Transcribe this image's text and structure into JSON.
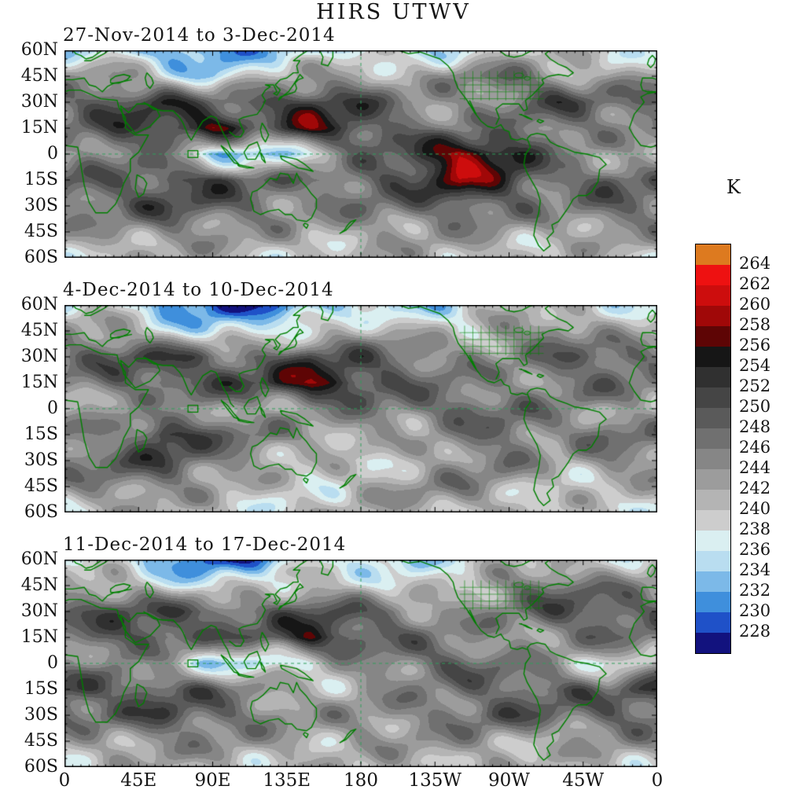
{
  "title": "HIRS UTWV",
  "panels": [
    {
      "title": "27-Nov-2014 to 3-Dec-2014"
    },
    {
      "title": "4-Dec-2014 to 10-Dec-2014"
    },
    {
      "title": "11-Dec-2014 to 17-Dec-2014"
    }
  ],
  "axes": {
    "lat_ticks": [
      "60N",
      "45N",
      "30N",
      "15N",
      "0",
      "15S",
      "30S",
      "45S",
      "60S"
    ],
    "lon_ticks": [
      "0",
      "45E",
      "90E",
      "135E",
      "180",
      "135W",
      "90W",
      "45W",
      "0"
    ]
  },
  "colorbar": {
    "label": "K",
    "ticks": [
      "264",
      "262",
      "260",
      "258",
      "256",
      "254",
      "252",
      "250",
      "248",
      "246",
      "244",
      "242",
      "240",
      "238",
      "236",
      "234",
      "232",
      "230",
      "228"
    ],
    "colors": [
      "#dd7a1f",
      "#ee1111",
      "#cd0d0d",
      "#a00808",
      "#5e0505",
      "#161616",
      "#303030",
      "#454545",
      "#5a5a5a",
      "#707070",
      "#868686",
      "#9c9c9c",
      "#b4b4b4",
      "#cdcdcd",
      "#daeff1",
      "#b9ddf0",
      "#7cb9e8",
      "#3f8fdc",
      "#1f51c8",
      "#12127e"
    ],
    "coast_color": "#008000"
  },
  "chart_data": {
    "type": "heatmap",
    "title": "HIRS UTWV",
    "units": "K",
    "lat_range": [
      -60,
      60
    ],
    "lon_range": [
      0,
      360
    ],
    "grid_lat_step": 15,
    "grid_lon_step": 30,
    "levels": [
      228,
      230,
      232,
      234,
      236,
      238,
      240,
      242,
      244,
      246,
      248,
      250,
      252,
      254,
      256,
      258,
      260,
      262,
      264
    ],
    "panels": [
      {
        "title": "27-Nov-2014 to 3-Dec-2014",
        "values": [
          [
            237,
            236,
            232,
            230,
            233,
            234,
            236,
            237,
            238,
            239,
            239,
            238,
            237
          ],
          [
            243,
            246,
            240,
            234,
            238,
            242,
            244,
            241,
            246,
            248,
            244,
            240,
            243
          ],
          [
            248,
            250,
            252,
            248,
            250,
            253,
            250,
            246,
            244,
            246,
            250,
            248,
            248
          ],
          [
            246,
            250,
            252,
            257,
            248,
            257,
            252,
            246,
            244,
            246,
            248,
            246,
            246
          ],
          [
            242,
            246,
            244,
            234,
            234,
            240,
            246,
            250,
            259,
            255,
            246,
            243,
            242
          ],
          [
            248,
            247,
            250,
            252,
            248,
            246,
            249,
            250,
            258,
            252,
            247,
            250,
            248
          ],
          [
            247,
            249,
            251,
            248,
            246,
            244,
            246,
            248,
            250,
            248,
            244,
            247,
            247
          ],
          [
            243,
            244,
            246,
            244,
            242,
            241,
            243,
            244,
            245,
            243,
            241,
            243,
            243
          ],
          [
            240,
            241,
            242,
            241,
            240,
            239,
            241,
            242,
            242,
            241,
            240,
            240,
            240
          ]
        ]
      },
      {
        "title": "4-Dec-2014 to 10-Dec-2014",
        "values": [
          [
            238,
            236,
            231,
            229,
            230,
            232,
            236,
            233,
            237,
            239,
            240,
            239,
            238
          ],
          [
            242,
            244,
            238,
            235,
            237,
            240,
            243,
            240,
            237,
            244,
            247,
            243,
            242
          ],
          [
            247,
            249,
            251,
            249,
            248,
            251,
            249,
            247,
            245,
            244,
            248,
            250,
            247
          ],
          [
            245,
            248,
            250,
            249,
            251,
            258,
            252,
            248,
            246,
            244,
            246,
            247,
            245
          ],
          [
            241,
            246,
            242,
            245,
            240,
            243,
            246,
            248,
            250,
            248,
            244,
            242,
            241
          ],
          [
            246,
            244,
            255,
            248,
            246,
            242,
            244,
            241,
            246,
            248,
            244,
            247,
            246
          ],
          [
            246,
            248,
            250,
            247,
            244,
            241,
            238,
            240,
            244,
            246,
            242,
            246,
            246
          ],
          [
            242,
            244,
            245,
            243,
            241,
            240,
            242,
            243,
            244,
            242,
            240,
            242,
            242
          ],
          [
            240,
            241,
            241,
            240,
            239,
            240,
            241,
            241,
            242,
            240,
            239,
            240,
            240
          ]
        ]
      },
      {
        "title": "11-Dec-2014 to 17-Dec-2014",
        "values": [
          [
            239,
            237,
            233,
            228,
            231,
            235,
            237,
            236,
            238,
            240,
            240,
            239,
            239
          ],
          [
            243,
            245,
            239,
            236,
            238,
            241,
            240,
            238,
            241,
            246,
            248,
            244,
            243
          ],
          [
            248,
            250,
            251,
            249,
            247,
            250,
            248,
            246,
            244,
            246,
            249,
            250,
            248
          ],
          [
            246,
            249,
            250,
            248,
            250,
            256,
            250,
            246,
            244,
            243,
            246,
            248,
            246
          ],
          [
            241,
            244,
            240,
            236,
            236,
            240,
            244,
            246,
            248,
            246,
            242,
            240,
            241
          ],
          [
            253,
            248,
            250,
            248,
            244,
            241,
            243,
            244,
            246,
            248,
            250,
            247,
            253
          ],
          [
            247,
            249,
            251,
            248,
            245,
            242,
            244,
            246,
            248,
            250,
            246,
            248,
            247
          ],
          [
            243,
            244,
            246,
            244,
            242,
            241,
            243,
            244,
            245,
            243,
            241,
            243,
            243
          ],
          [
            240,
            241,
            242,
            241,
            240,
            240,
            241,
            242,
            242,
            241,
            240,
            240,
            240
          ]
        ]
      }
    ]
  }
}
